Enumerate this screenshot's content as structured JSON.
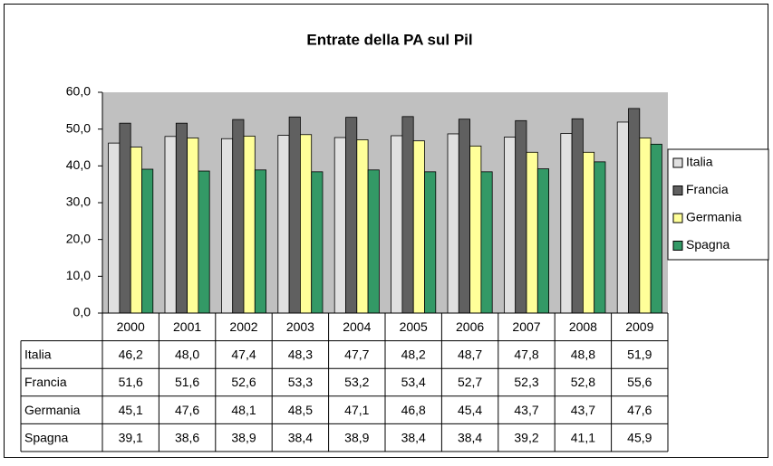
{
  "chart_data": {
    "type": "bar",
    "title": "Entrate della PA sul Pil",
    "categories": [
      "2000",
      "2001",
      "2002",
      "2003",
      "2004",
      "2005",
      "2006",
      "2007",
      "2008",
      "2009"
    ],
    "series": [
      {
        "name": "Italia",
        "color": "#e0e0e0",
        "values": [
          46.2,
          48.0,
          47.4,
          48.3,
          47.7,
          48.2,
          48.7,
          47.8,
          48.8,
          51.9
        ],
        "value_labels": [
          "46,2",
          "48,0",
          "47,4",
          "48,3",
          "47,7",
          "48,2",
          "48,7",
          "47,8",
          "48,8",
          "51,9"
        ]
      },
      {
        "name": "Francia",
        "color": "#606060",
        "values": [
          51.6,
          51.6,
          52.6,
          53.3,
          53.2,
          53.4,
          52.7,
          52.3,
          52.8,
          55.6
        ],
        "value_labels": [
          "51,6",
          "51,6",
          "52,6",
          "53,3",
          "53,2",
          "53,4",
          "52,7",
          "52,3",
          "52,8",
          "55,6"
        ]
      },
      {
        "name": "Germania",
        "color": "#ffff99",
        "values": [
          45.1,
          47.6,
          48.1,
          48.5,
          47.1,
          46.8,
          45.4,
          43.7,
          43.7,
          47.6
        ],
        "value_labels": [
          "45,1",
          "47,6",
          "48,1",
          "48,5",
          "47,1",
          "46,8",
          "45,4",
          "43,7",
          "43,7",
          "47,6"
        ]
      },
      {
        "name": "Spagna",
        "color": "#339966",
        "values": [
          39.1,
          38.6,
          38.9,
          38.4,
          38.9,
          38.4,
          38.4,
          39.2,
          41.1,
          45.9
        ],
        "value_labels": [
          "39,1",
          "38,6",
          "38,9",
          "38,4",
          "38,9",
          "38,4",
          "38,4",
          "39,2",
          "41,1",
          "45,9"
        ]
      }
    ],
    "ylim": [
      0,
      60
    ],
    "yticks": [
      {
        "value": 0,
        "label": "0,0"
      },
      {
        "value": 10,
        "label": "10,0"
      },
      {
        "value": 20,
        "label": "20,0"
      },
      {
        "value": 30,
        "label": "30,0"
      },
      {
        "value": 40,
        "label": "40,0"
      },
      {
        "value": 50,
        "label": "50,0"
      },
      {
        "value": 60,
        "label": "60,0"
      }
    ],
    "grid": false,
    "legend": "right",
    "data_table": true
  }
}
